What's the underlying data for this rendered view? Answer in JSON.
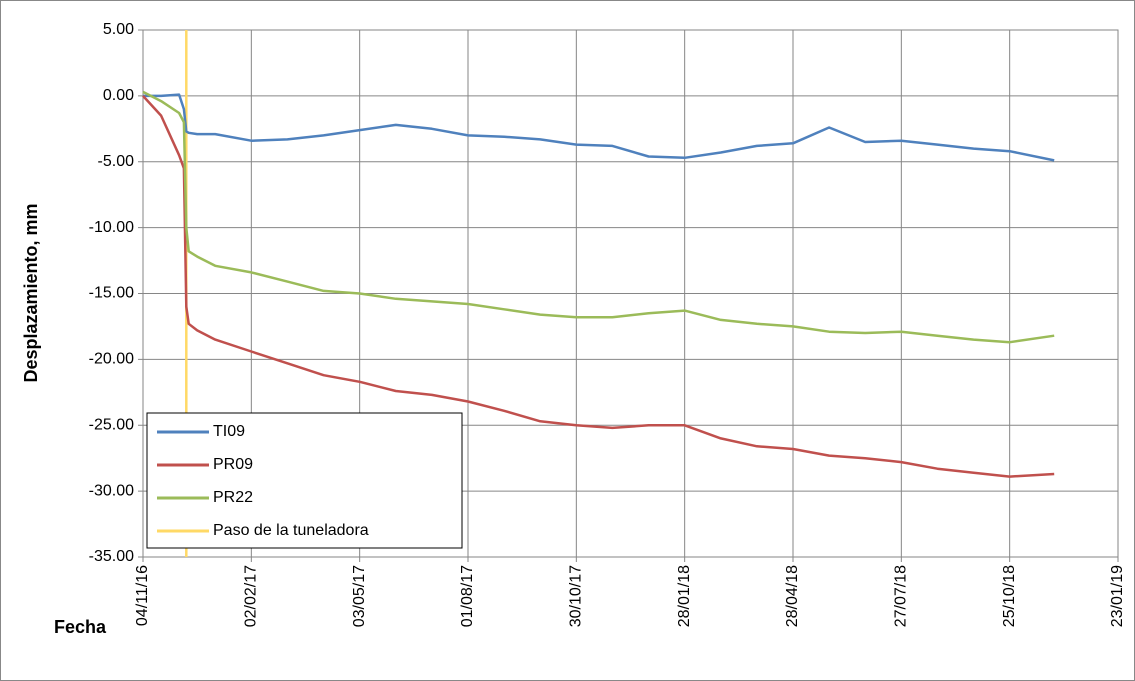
{
  "chart_data": {
    "type": "line",
    "y_label": "Desplazamiento, mm",
    "x_label": "Fecha",
    "x": [
      "04/11/16",
      "19/11/16",
      "04/12/16",
      "08/12/16",
      "10/12/16",
      "12/12/16",
      "19/12/16",
      "03/01/17",
      "02/02/17",
      "04/03/17",
      "03/04/17",
      "03/05/17",
      "02/06/17",
      "02/07/17",
      "01/08/17",
      "31/08/17",
      "30/09/17",
      "30/10/17",
      "29/11/17",
      "29/12/17",
      "28/01/18",
      "27/02/18",
      "29/03/18",
      "28/04/18",
      "28/05/18",
      "27/06/18",
      "27/07/18",
      "26/08/18",
      "25/09/18",
      "25/10/18",
      "01/12/18"
    ],
    "series": [
      {
        "name": "TI09",
        "color": "#4f81bd",
        "values": [
          0,
          0,
          0.1,
          -1,
          -2.7,
          -2.8,
          -2.9,
          -2.9,
          -3.4,
          -3.3,
          -3.0,
          -2.6,
          -2.2,
          -2.5,
          -3.0,
          -3.1,
          -3.3,
          -3.7,
          -3.8,
          -4.6,
          -4.7,
          -4.3,
          -3.8,
          -3.6,
          -2.4,
          -3.5,
          -3.4,
          -3.7,
          -4.0,
          -4.2,
          -4.9
        ]
      },
      {
        "name": "PR09",
        "color": "#c0504d",
        "values": [
          0,
          -1.5,
          -4.5,
          -5.5,
          -16,
          -17.3,
          -17.8,
          -18.5,
          -19.4,
          -20.3,
          -21.2,
          -21.7,
          -22.4,
          -22.7,
          -23.2,
          -23.9,
          -24.7,
          -25.0,
          -25.2,
          -25.0,
          -25.0,
          -26.0,
          -26.6,
          -26.8,
          -27.3,
          -27.5,
          -27.8,
          -28.3,
          -28.6,
          -28.9,
          -28.7
        ]
      },
      {
        "name": "PR22",
        "color": "#9bbb59",
        "values": [
          0.3,
          -0.4,
          -1.3,
          -2,
          -10,
          -11.8,
          -12.2,
          -12.9,
          -13.4,
          -14.1,
          -14.8,
          -15.0,
          -15.4,
          -15.6,
          -15.8,
          -16.2,
          -16.6,
          -16.8,
          -16.8,
          -16.5,
          -16.3,
          -17.0,
          -17.3,
          -17.5,
          -17.9,
          -18.0,
          -17.9,
          -18.2,
          -18.5,
          -18.7,
          -18.2
        ]
      },
      {
        "name": "Paso de la tuneladora",
        "color": "#ffd966",
        "x": [
          "10/12/16",
          "10/12/16"
        ],
        "values": [
          5,
          -35
        ]
      }
    ],
    "xlim": [
      "04/11/16",
      "23/01/19"
    ],
    "xticks": [
      "04/11/16",
      "02/02/17",
      "03/05/17",
      "01/08/17",
      "30/10/17",
      "28/01/18",
      "28/04/18",
      "27/07/18",
      "25/10/18",
      "23/01/19"
    ],
    "ylim": [
      -35,
      5
    ],
    "yticks": [
      {
        "value": 5,
        "label": "5.00"
      },
      {
        "value": 0,
        "label": "0.00"
      },
      {
        "value": -5,
        "label": "-5.00"
      },
      {
        "value": -10,
        "label": "-10.00"
      },
      {
        "value": -15,
        "label": "-15.00"
      },
      {
        "value": -20,
        "label": "-20.00"
      },
      {
        "value": -25,
        "label": "-25.00"
      },
      {
        "value": -30,
        "label": "-30.00"
      },
      {
        "value": -35,
        "label": "-35.00"
      }
    ],
    "grid": true,
    "legend": "lower left"
  }
}
